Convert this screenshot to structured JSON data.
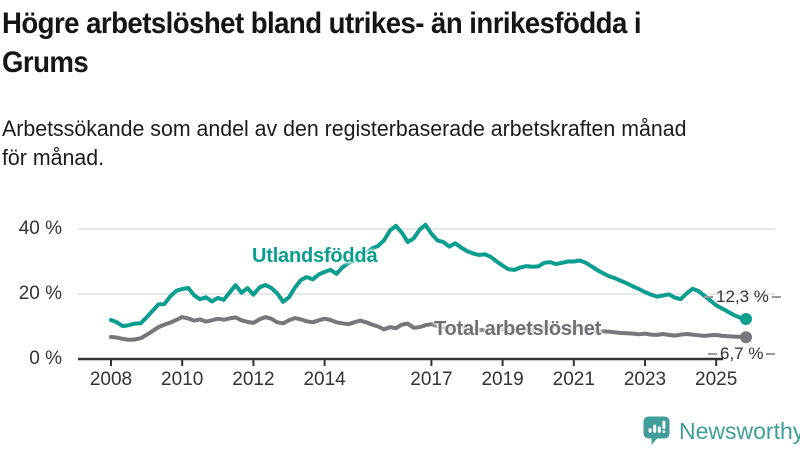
{
  "title": {
    "lines": [
      "Högre arbetslöshet bland utrikes- än inrikesfödda i",
      "Grums"
    ]
  },
  "subtitle": {
    "lines": [
      "Arbetssökande som andel av den registerbaserade arbetskraften månad",
      "för månad."
    ]
  },
  "colors": {
    "accent_teal": "#0a9e8f",
    "series_gray": "#76767c",
    "label_gray": "#6e6e75",
    "axis": "#333333",
    "grid": "#e0e0e0",
    "leader_dash": "#9a9a9a",
    "logo_teal": "#3f9e99",
    "text": "#151515"
  },
  "logo": {
    "text": "Newsworthy",
    "icon": "speech-bubble-bar-chart-icon"
  },
  "chart_data": {
    "type": "line",
    "title": "Högre arbetslöshet bland utrikes- än inrikesfödda i Grums",
    "subtitle": "Arbetssökande som andel av den registerbaserade arbetskraften månad för månad.",
    "xlabel": "",
    "ylabel": "",
    "x_unit": "decimal_year_bimonthly",
    "xlim": [
      2008,
      2025.84
    ],
    "ylim": [
      0,
      44
    ],
    "grid": "horizontal",
    "legend_position": "inline-labels",
    "y_ticks": [
      {
        "v": 0,
        "label": "0 %"
      },
      {
        "v": 20,
        "label": "20 %"
      },
      {
        "v": 40,
        "label": "40 %"
      }
    ],
    "x_ticks": [
      {
        "v": 2008,
        "label": "2008"
      },
      {
        "v": 2010,
        "label": "2010"
      },
      {
        "v": 2012,
        "label": "2012"
      },
      {
        "v": 2014,
        "label": "2014"
      },
      {
        "v": 2017,
        "label": "2017"
      },
      {
        "v": 2019,
        "label": "2019"
      },
      {
        "v": 2021,
        "label": "2021"
      },
      {
        "v": 2023,
        "label": "2023"
      },
      {
        "v": 2025,
        "label": "2025"
      }
    ],
    "series": [
      {
        "name": "Utlandsfödda",
        "color": "#0a9e8f",
        "end_label": "12,3 %",
        "end_value": 12.3,
        "start_year": 2008.0,
        "step_years": 0.1667,
        "values": [
          12.0,
          11.3,
          10.1,
          10.4,
          10.9,
          11.0,
          12.8,
          14.8,
          16.8,
          16.9,
          19.3,
          21.0,
          21.5,
          21.9,
          19.6,
          18.4,
          19.0,
          17.7,
          18.8,
          18.2,
          20.5,
          22.7,
          20.4,
          21.8,
          19.8,
          22.0,
          22.8,
          21.9,
          20.2,
          17.6,
          19.0,
          22.0,
          24.3,
          25.2,
          24.5,
          26.0,
          26.8,
          27.4,
          26.2,
          28.2,
          29.5,
          30.3,
          31.8,
          32.6,
          34.0,
          34.8,
          36.5,
          39.5,
          41.0,
          38.9,
          36.0,
          37.1,
          39.8,
          41.3,
          38.5,
          36.5,
          36.0,
          34.6,
          35.6,
          34.3,
          33.2,
          32.5,
          32.0,
          32.2,
          31.4,
          30.0,
          28.7,
          27.6,
          27.4,
          28.2,
          28.6,
          28.4,
          28.5,
          29.6,
          29.8,
          29.2,
          29.6,
          30.0,
          30.0,
          30.3,
          29.6,
          28.5,
          27.3,
          26.3,
          25.4,
          24.8,
          24.0,
          23.2,
          22.3,
          21.5,
          20.6,
          19.8,
          19.2,
          19.5,
          19.9,
          18.9,
          18.4,
          20.2,
          21.6,
          20.9,
          19.4,
          18.0,
          16.5,
          15.5,
          14.5,
          13.5,
          12.7,
          12.3
        ]
      },
      {
        "name": "Total arbetslöshet",
        "color": "#76767c",
        "end_label": "6,7 %",
        "end_value": 6.7,
        "start_year": 2008.0,
        "step_years": 0.1667,
        "values": [
          6.8,
          6.6,
          6.2,
          5.9,
          6.0,
          6.4,
          7.4,
          8.6,
          9.8,
          10.6,
          11.2,
          12.0,
          12.9,
          12.5,
          11.8,
          12.2,
          11.5,
          11.9,
          12.4,
          12.1,
          12.5,
          12.8,
          11.9,
          11.4,
          11.1,
          12.2,
          12.9,
          12.4,
          11.3,
          11.0,
          11.9,
          12.6,
          12.2,
          11.6,
          11.3,
          11.9,
          12.4,
          12.0,
          11.3,
          11.0,
          10.7,
          11.3,
          11.8,
          11.3,
          10.6,
          10.0,
          9.1,
          9.8,
          9.5,
          10.6,
          10.9,
          9.6,
          9.8,
          10.4,
          10.7,
          10.2,
          9.7,
          9.3,
          9.6,
          9.9,
          9.7,
          9.4,
          9.0,
          8.8,
          8.9,
          9.2,
          9.1,
          8.8,
          8.6,
          8.7,
          8.9,
          9.0,
          9.2,
          9.7,
          9.9,
          9.6,
          9.4,
          9.5,
          9.6,
          9.4,
          9.1,
          8.8,
          8.6,
          8.5,
          8.4,
          8.2,
          8.0,
          7.9,
          7.8,
          7.6,
          7.8,
          7.5,
          7.4,
          7.7,
          7.4,
          7.2,
          7.5,
          7.7,
          7.5,
          7.3,
          7.1,
          7.3,
          7.4,
          7.1,
          7.0,
          6.9,
          6.8,
          6.7
        ]
      }
    ]
  }
}
